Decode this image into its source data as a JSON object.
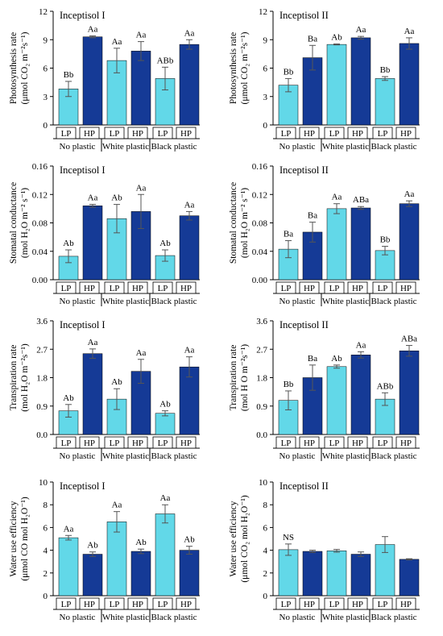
{
  "colors": {
    "lp": "#62d8e8",
    "hp": "#153a96",
    "stroke": "#000000",
    "error": "#555555"
  },
  "group_labels": [
    "No plastic",
    "White plastic",
    "Black plastic"
  ],
  "bar_labels": [
    "LP",
    "HP"
  ],
  "chart_data": [
    {
      "type": "bar",
      "title": "Inceptisol I",
      "ylabel_line1": "Photosynthesis rate",
      "ylabel_line2": "(μmol CO₂ m⁻²s⁻¹)",
      "ylim": [
        0,
        12
      ],
      "yticks": [
        "0",
        "3",
        "6",
        "9",
        "12"
      ],
      "categories": [
        "No plastic",
        "White plastic",
        "Black plastic"
      ],
      "series": [
        {
          "name": "LP",
          "values": [
            3.8,
            6.8,
            4.9
          ],
          "errors": [
            0.8,
            1.3,
            1.2
          ],
          "labels": [
            "Bb",
            "Aa",
            "ABb"
          ]
        },
        {
          "name": "HP",
          "values": [
            9.3,
            7.8,
            8.5
          ],
          "errors": [
            0.1,
            1.0,
            0.5
          ],
          "labels": [
            "Aa",
            "Aa",
            "Aa"
          ]
        }
      ]
    },
    {
      "type": "bar",
      "title": "Inceptisol II",
      "ylabel_line1": "Photosynthesis rate",
      "ylabel_line2": "(μmol CO₂ m⁻²s⁻¹)",
      "ylim": [
        0,
        12
      ],
      "yticks": [
        "0",
        "3",
        "6",
        "9",
        "12"
      ],
      "categories": [
        "No plastic",
        "White plastic",
        "Black plastic"
      ],
      "series": [
        {
          "name": "LP",
          "values": [
            4.2,
            8.5,
            4.9
          ],
          "errors": [
            0.7,
            0.05,
            0.2
          ],
          "labels": [
            "Bb",
            "Ab",
            "Bb"
          ]
        },
        {
          "name": "HP",
          "values": [
            7.1,
            9.2,
            8.6
          ],
          "errors": [
            1.3,
            0.15,
            0.6
          ],
          "labels": [
            "Ba",
            "Aa",
            "Aa"
          ]
        }
      ]
    },
    {
      "type": "bar",
      "title": "Inceptisol I",
      "ylabel_line1": "Stomatal conductance",
      "ylabel_line2": "(mol H₂O m⁻² s⁻¹)",
      "ylim": [
        0,
        0.16
      ],
      "yticks": [
        "0.00",
        "0.04",
        "0.08",
        "0.12",
        "0.16"
      ],
      "categories": [
        "No plastic",
        "White plastic",
        "Black plastic"
      ],
      "series": [
        {
          "name": "LP",
          "values": [
            0.033,
            0.086,
            0.034
          ],
          "errors": [
            0.009,
            0.02,
            0.008
          ],
          "labels": [
            "Ab",
            "Ab",
            "Ab"
          ]
        },
        {
          "name": "HP",
          "values": [
            0.104,
            0.096,
            0.09
          ],
          "errors": [
            0.002,
            0.024,
            0.006
          ],
          "labels": [
            "Aa",
            "Aa",
            "Aa"
          ]
        }
      ]
    },
    {
      "type": "bar",
      "title": "Inceptisol II",
      "ylabel_line1": "Stomatal conductance",
      "ylabel_line2": "(mol H₂O m⁻² s⁻¹)",
      "ylim": [
        0,
        0.16
      ],
      "yticks": [
        "0.00",
        "0.04",
        "0.08",
        "0.12",
        "0.16"
      ],
      "categories": [
        "No plastic",
        "White plastic",
        "Black plastic"
      ],
      "series": [
        {
          "name": "LP",
          "values": [
            0.043,
            0.1,
            0.041
          ],
          "errors": [
            0.012,
            0.007,
            0.006
          ],
          "labels": [
            "Ba",
            "Aa",
            "Bb"
          ]
        },
        {
          "name": "HP",
          "values": [
            0.067,
            0.101,
            0.107
          ],
          "errors": [
            0.014,
            0.002,
            0.004
          ],
          "labels": [
            "Ba",
            "ABa",
            "Aa"
          ]
        }
      ]
    },
    {
      "type": "bar",
      "title": "Inceptisol I",
      "ylabel_line1": "Transpiration rate",
      "ylabel_line2": "(mol H₂O m⁻²s⁻¹)",
      "ylim": [
        0,
        3.6
      ],
      "yticks": [
        "0.0",
        "0.9",
        "1.8",
        "2.7",
        "3.6"
      ],
      "categories": [
        "No plastic",
        "White plastic",
        "Black plastic"
      ],
      "series": [
        {
          "name": "LP",
          "values": [
            0.75,
            1.12,
            0.67
          ],
          "errors": [
            0.2,
            0.33,
            0.08
          ],
          "labels": [
            "Ab",
            "Ab",
            "Ab"
          ]
        },
        {
          "name": "HP",
          "values": [
            2.56,
            2.0,
            2.14
          ],
          "errors": [
            0.15,
            0.38,
            0.32
          ],
          "labels": [
            "Aa",
            "Aa",
            "Aa"
          ]
        }
      ]
    },
    {
      "type": "bar",
      "title": "Inceptisol II",
      "ylabel_line1": "Transpiration rate",
      "ylabel_line2": "(mol H O m⁻²s⁻¹)",
      "ylim": [
        0,
        3.6
      ],
      "yticks": [
        "0.0",
        "0.9",
        "1.8",
        "2.7",
        "3.6"
      ],
      "categories": [
        "No plastic",
        "White plastic",
        "Black plastic"
      ],
      "series": [
        {
          "name": "LP",
          "values": [
            1.08,
            2.15,
            1.12
          ],
          "errors": [
            0.3,
            0.05,
            0.2
          ],
          "labels": [
            "Bb",
            "Ab",
            "ABb"
          ]
        },
        {
          "name": "HP",
          "values": [
            1.8,
            2.52,
            2.65
          ],
          "errors": [
            0.4,
            0.1,
            0.17
          ],
          "labels": [
            "Ba",
            "Aa",
            "ABa"
          ]
        }
      ]
    },
    {
      "type": "bar",
      "title": "Inceptisol I",
      "ylabel_line1": "Water use efficiency",
      "ylabel_line2": "(μmol CO mol H₂O⁻¹)",
      "ylim": [
        0,
        10
      ],
      "yticks": [
        "0",
        "2",
        "4",
        "6",
        "8",
        "10"
      ],
      "categories": [
        "No plastic",
        "White plastic",
        "Black plastic"
      ],
      "series": [
        {
          "name": "LP",
          "values": [
            5.1,
            6.5,
            7.2
          ],
          "errors": [
            0.2,
            0.9,
            0.8
          ],
          "labels": [
            "Aa",
            "Aa",
            "Aa"
          ]
        },
        {
          "name": "HP",
          "values": [
            3.65,
            3.9,
            4.0
          ],
          "errors": [
            0.2,
            0.2,
            0.35
          ],
          "labels": [
            "Ab",
            "Ab",
            "Ab"
          ]
        }
      ]
    },
    {
      "type": "bar",
      "title": "Inceptisol II",
      "ylabel_line1": "Water use efficiency",
      "ylabel_line2": "(μmol CO₂ mol H₂O⁻¹)",
      "ylim": [
        0,
        10
      ],
      "yticks": [
        "0",
        "2",
        "4",
        "6",
        "8",
        "10"
      ],
      "categories": [
        "No plastic",
        "White plastic",
        "Black plastic"
      ],
      "series": [
        {
          "name": "LP",
          "values": [
            4.05,
            3.95,
            4.5
          ],
          "errors": [
            0.5,
            0.12,
            0.7
          ],
          "labels": [
            "NS",
            "",
            ""
          ]
        },
        {
          "name": "HP",
          "values": [
            3.9,
            3.65,
            3.2
          ],
          "errors": [
            0.1,
            0.2,
            0.05
          ],
          "labels": [
            "",
            "",
            ""
          ]
        }
      ]
    }
  ]
}
